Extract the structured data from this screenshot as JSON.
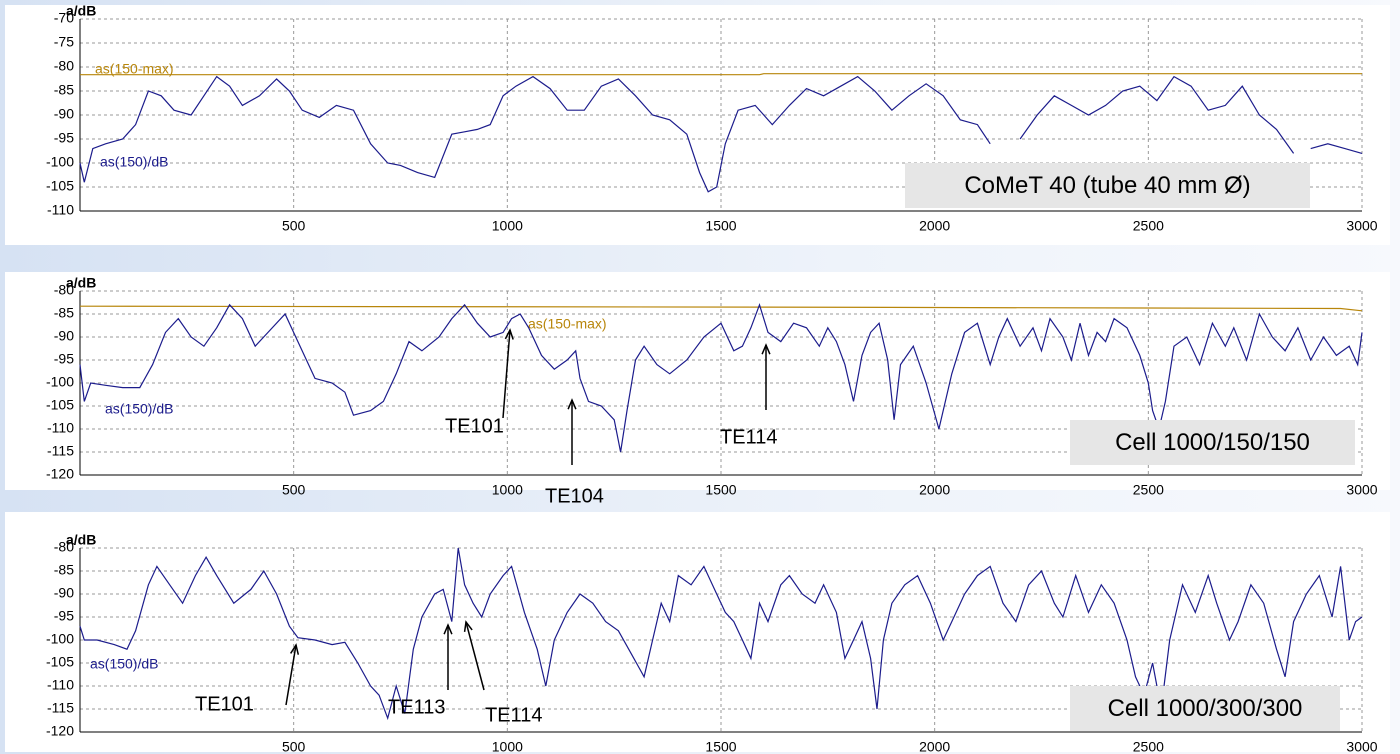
{
  "chart_data": [
    {
      "type": "line",
      "y_label": "a/dB",
      "xlim": [
        0,
        3000
      ],
      "xticks": [
        500,
        1000,
        1500,
        2000,
        2500,
        3000
      ],
      "ylim": [
        -110,
        -70
      ],
      "yticks": [
        -70,
        -75,
        -80,
        -85,
        -90,
        -95,
        -100,
        -105,
        -110
      ],
      "grid": true,
      "box_label": "CoMeT 40 (tube 40 mm Ø)",
      "annotations": [],
      "series": [
        {
          "name": "as(150-max)",
          "color": "#b8860b",
          "x": [
            0,
            1590,
            1600,
            3000
          ],
          "values": [
            -81.6,
            -81.6,
            -81.4,
            -81.4
          ]
        },
        {
          "name": "as(150)/dB",
          "color": "#1c1c8c",
          "x": [
            0,
            10,
            30,
            60,
            100,
            130,
            160,
            190,
            220,
            260,
            290,
            320,
            350,
            380,
            420,
            460,
            490,
            520,
            560,
            600,
            640,
            680,
            720,
            750,
            790,
            830,
            870,
            900,
            930,
            960,
            990,
            1020,
            1060,
            1100,
            1140,
            1180,
            1220,
            1260,
            1300,
            1340,
            1380,
            1420,
            1450,
            1470,
            1490,
            1510,
            1540,
            1580,
            1620,
            1660,
            1700,
            1740,
            1780,
            1820,
            1860,
            1900,
            1940,
            1980,
            2020,
            2060,
            2100,
            2130,
            2150,
            2200,
            2240,
            2280,
            2320,
            2360,
            2400,
            2440,
            2480,
            2520,
            2560,
            2600,
            2640,
            2680,
            2720,
            2760,
            2800,
            2840,
            2860,
            2880,
            2920,
            2960,
            3000
          ],
          "values": [
            -100,
            -104,
            -97,
            -96,
            -95,
            -92,
            -85,
            -86,
            -89,
            -90,
            -86,
            -82,
            -84,
            -88,
            -86,
            -82.5,
            -85,
            -89,
            -90.5,
            -88,
            -89,
            -96,
            -100,
            -100.5,
            -102,
            -103,
            -94,
            -93.5,
            -93,
            -92,
            -86,
            -84,
            -82,
            -84.5,
            -89,
            -89,
            -84,
            -82.5,
            -86,
            -90,
            -91,
            -94,
            -102,
            -106,
            -105,
            -96,
            -89,
            -88,
            -92,
            -88,
            -84.5,
            -86,
            -84,
            -82,
            -85,
            -89,
            -86,
            -83.5,
            -86,
            -91,
            -92,
            -96,
            null,
            -95,
            -90,
            -86,
            -88,
            -90,
            -88,
            -85,
            -84,
            -87,
            -82,
            -84,
            -89,
            -88,
            -84,
            -90,
            -93,
            -98,
            null,
            -97,
            -96,
            -97,
            -98
          ]
        }
      ]
    },
    {
      "type": "line",
      "y_label": "a/dB",
      "xlim": [
        0,
        3000
      ],
      "xticks": [
        500,
        1000,
        1500,
        2000,
        2500,
        3000
      ],
      "ylim": [
        -120,
        -80
      ],
      "yticks": [
        -80,
        -85,
        -90,
        -95,
        -100,
        -105,
        -110,
        -115,
        -120
      ],
      "grid": true,
      "box_label": "Cell 1000/150/150",
      "annotations": [
        "TE101",
        "TE104",
        "TE114"
      ],
      "series": [
        {
          "name": "as(150-max)",
          "color": "#b8860b",
          "x": [
            0,
            1600,
            2950,
            3000
          ],
          "values": [
            -83.3,
            -83.5,
            -83.8,
            -84.3
          ]
        },
        {
          "name": "as(150)/dB",
          "color": "#1c1c8c",
          "x": [
            0,
            10,
            25,
            60,
            100,
            140,
            170,
            200,
            230,
            260,
            290,
            320,
            350,
            380,
            410,
            440,
            480,
            510,
            550,
            590,
            620,
            640,
            680,
            710,
            740,
            770,
            800,
            840,
            870,
            900,
            930,
            960,
            990,
            1010,
            1030,
            1050,
            1080,
            1110,
            1140,
            1160,
            1170,
            1190,
            1220,
            1250,
            1265,
            1280,
            1300,
            1320,
            1350,
            1380,
            1420,
            1460,
            1500,
            1530,
            1550,
            1570,
            1590,
            1610,
            1640,
            1670,
            1700,
            1730,
            1750,
            1770,
            1790,
            1810,
            1830,
            1850,
            1870,
            1890,
            1905,
            1920,
            1950,
            1980,
            2010,
            2040,
            2070,
            2100,
            2130,
            2150,
            2170,
            2200,
            2230,
            2250,
            2270,
            2300,
            2320,
            2340,
            2360,
            2380,
            2400,
            2420,
            2450,
            2480,
            2500,
            2510,
            2525,
            2540,
            2560,
            2590,
            2620,
            2650,
            2680,
            2700,
            2730,
            2760,
            2790,
            2820,
            2850,
            2880,
            2910,
            2940,
            2970,
            2990,
            3000
          ],
          "values": [
            -96,
            -104,
            -100,
            -100.5,
            -101,
            -101,
            -96,
            -89,
            -86,
            -90,
            -92,
            -88,
            -83,
            -86,
            -92,
            -89,
            -85,
            -91,
            -99,
            -100,
            -102,
            -107,
            -106,
            -104,
            -98,
            -91,
            -93,
            -90,
            -86,
            -83,
            -87,
            -90,
            -89,
            -86,
            -85,
            -88,
            -94,
            -97,
            -95,
            -93,
            -99,
            -104,
            -105,
            -108,
            -115,
            -106,
            -95,
            -92,
            -96,
            -98,
            -95,
            -90,
            -87,
            -93,
            -92,
            -88,
            -83,
            -89,
            -91,
            -87,
            -88,
            -92,
            -88,
            -91,
            -96,
            -104,
            -94,
            -89,
            -87,
            -95,
            -108,
            -96,
            -92,
            -100,
            -110,
            -98,
            -89,
            -87,
            -96,
            -90,
            -86,
            -92,
            -88,
            -93,
            -86,
            -90,
            -95,
            -87,
            -94,
            -89,
            -91,
            -86,
            -88,
            -94,
            -100,
            -106,
            -110,
            -104,
            -92,
            -90,
            -96,
            -87,
            -92,
            -88,
            -95,
            -85,
            -90,
            -93,
            -88,
            -95,
            -90,
            -94,
            -92,
            -96,
            -89
          ]
        }
      ]
    },
    {
      "type": "line",
      "y_label": "a/dB",
      "xlim": [
        0,
        3000
      ],
      "xticks": [
        500,
        1000,
        1500,
        2000,
        2500,
        3000
      ],
      "ylim": [
        -120,
        -80
      ],
      "yticks": [
        -80,
        -85,
        -90,
        -95,
        -100,
        -105,
        -110,
        -115,
        -120
      ],
      "grid": true,
      "box_label": "Cell 1000/300/300",
      "annotations": [
        "TE101",
        "TE113",
        "TE114"
      ],
      "series": [
        {
          "name": "as(150)/dB",
          "color": "#1c1c8c",
          "x": [
            0,
            10,
            40,
            80,
            110,
            130,
            160,
            180,
            210,
            240,
            270,
            295,
            320,
            360,
            400,
            430,
            460,
            490,
            510,
            550,
            590,
            620,
            650,
            680,
            700,
            720,
            740,
            760,
            780,
            800,
            830,
            850,
            870,
            885,
            900,
            920,
            940,
            960,
            990,
            1010,
            1040,
            1070,
            1090,
            1110,
            1140,
            1170,
            1200,
            1230,
            1260,
            1290,
            1320,
            1340,
            1360,
            1380,
            1400,
            1430,
            1460,
            1490,
            1510,
            1530,
            1550,
            1570,
            1590,
            1610,
            1640,
            1660,
            1690,
            1720,
            1740,
            1770,
            1790,
            1810,
            1830,
            1850,
            1865,
            1880,
            1900,
            1930,
            1960,
            1990,
            2020,
            2040,
            2070,
            2100,
            2130,
            2160,
            2190,
            2220,
            2250,
            2280,
            2300,
            2330,
            2360,
            2390,
            2420,
            2450,
            2470,
            2490,
            2510,
            2530,
            2550,
            2580,
            2610,
            2640,
            2660,
            2690,
            2710,
            2740,
            2770,
            2800,
            2820,
            2840,
            2870,
            2900,
            2930,
            2950,
            2970,
            2985,
            3000
          ],
          "values": [
            -97,
            -100,
            -100,
            -101,
            -102,
            -98,
            -88,
            -84,
            -88,
            -92,
            -86,
            -82,
            -86,
            -92,
            -89,
            -85,
            -90,
            -97,
            -99.5,
            -100,
            -101,
            -100.5,
            -105,
            -110,
            -112,
            -117,
            -110,
            -116,
            -102,
            -95,
            -90,
            -89,
            -96,
            -80,
            -88,
            -92,
            -95,
            -90,
            -86,
            -84,
            -94,
            -102,
            -110,
            -100,
            -94,
            -90,
            -92,
            -96,
            -98,
            -103,
            -108,
            -100,
            -92,
            -96,
            -86,
            -88,
            -84,
            -90,
            -94,
            -96,
            -100,
            -104,
            -92,
            -96,
            -88,
            -86,
            -90,
            -92,
            -88,
            -94,
            -104,
            -100,
            -96,
            -104,
            -115,
            -100,
            -92,
            -88,
            -86,
            -92,
            -100,
            -96,
            -90,
            -86,
            -84,
            -92,
            -96,
            -88,
            -85,
            -92,
            -95,
            -86,
            -94,
            -88,
            -92,
            -100,
            -108,
            -112,
            -105,
            -115,
            -100,
            -88,
            -94,
            -86,
            -92,
            -100,
            -96,
            -88,
            -92,
            -102,
            -108,
            -96,
            -90,
            -86,
            -95,
            -84,
            -100,
            -96,
            -95
          ]
        }
      ]
    }
  ]
}
